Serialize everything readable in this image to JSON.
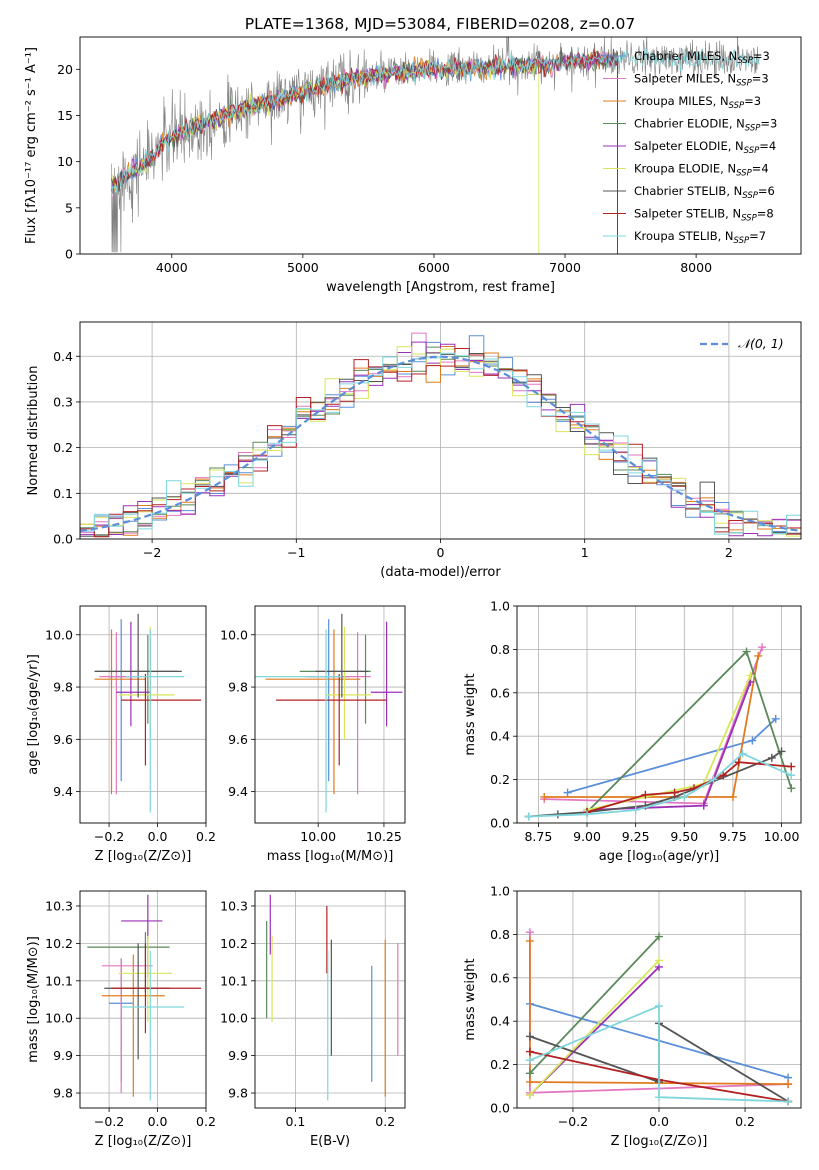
{
  "figure_title": "PLATE=1368, MJD=53084, FIBERID=0208, z=0.07",
  "colors": {
    "chabrier_miles": "#5b8fd9",
    "salpeter_miles": "#e377c2",
    "kroupa_miles": "#e07b1e",
    "chabrier_elodie": "#5a8a5a",
    "salpeter_elodie": "#9b30b8",
    "kroupa_elodie": "#d9e65a",
    "chabrier_stelib": "#555555",
    "salpeter_stelib": "#b22222",
    "kroupa_stelib": "#7fd6dc",
    "data": "#808080",
    "gaussian": "#5b8fd9",
    "grid": "#b0b0b0"
  },
  "chart_data": [
    {
      "id": "spectrum",
      "type": "line",
      "title": "PLATE=1368, MJD=53084, FIBERID=0208, z=0.07",
      "xlabel": "wavelength [Angstrom, rest frame]",
      "ylabel": "Flux [fλ10⁻¹⁷ erg cm⁻² s⁻¹ A⁻¹]",
      "xlim": [
        3300,
        8800
      ],
      "ylim": [
        0,
        23.5
      ],
      "xticks": [
        "4000",
        "5000",
        "6000",
        "7000",
        "8000"
      ],
      "xtick_values": [
        4000,
        5000,
        6000,
        7000,
        8000
      ],
      "yticks": [
        "0",
        "5",
        "10",
        "15",
        "20"
      ],
      "ytick_values": [
        0,
        5,
        10,
        15,
        20
      ],
      "grid": false,
      "legend_position": "right",
      "continuum_anchors": {
        "x": [
          3550,
          3650,
          3800,
          3950,
          4100,
          4300,
          4500,
          4800,
          5000,
          5200,
          5500,
          5800,
          6000,
          6200,
          6500,
          6800,
          7000,
          7200,
          7400
        ],
        "y": [
          7.5,
          8.5,
          9.8,
          12.2,
          13.3,
          14.5,
          15.5,
          16.8,
          17.5,
          18.4,
          19.3,
          19.8,
          20.0,
          20.1,
          20.3,
          20.5,
          20.8,
          21.0,
          21.1
        ]
      },
      "legend": [
        {
          "label": "Chabrier MILES, N",
          "sub": "SSP",
          "tail": "=3"
        },
        {
          "label": "Salpeter MILES, N",
          "sub": "SSP",
          "tail": "=3"
        },
        {
          "label": "Kroupa MILES, N",
          "sub": "SSP",
          "tail": "=3"
        },
        {
          "label": "Chabrier ELODIE, N",
          "sub": "SSP",
          "tail": "=3"
        },
        {
          "label": "Salpeter ELODIE, N",
          "sub": "SSP",
          "tail": "=4"
        },
        {
          "label": "Kroupa ELODIE, N",
          "sub": "SSP",
          "tail": "=4"
        },
        {
          "label": "Chabrier STELIB, N",
          "sub": "SSP",
          "tail": "=6"
        },
        {
          "label": "Salpeter STELIB, N",
          "sub": "SSP",
          "tail": "=8"
        },
        {
          "label": "Kroupa STELIB, N",
          "sub": "SSP",
          "tail": "=7"
        }
      ]
    },
    {
      "id": "residuals",
      "type": "line",
      "xlabel": "(data-model)/error",
      "ylabel": "Normed distribution",
      "xlim": [
        -2.5,
        2.5
      ],
      "ylim": [
        0,
        0.475
      ],
      "xticks": [
        "−2",
        "−1",
        "0",
        "1",
        "2"
      ],
      "xtick_values": [
        -2,
        -1,
        0,
        1,
        2
      ],
      "yticks": [
        "0.0",
        "0.1",
        "0.2",
        "0.3",
        "0.4"
      ],
      "ytick_values": [
        0,
        0.1,
        0.2,
        0.3,
        0.4
      ],
      "grid": true,
      "legend_position": "top-right",
      "legend_label": "𝒩(0, 1)",
      "bin_width": 0.1
    },
    {
      "id": "age_vs_Z",
      "type": "scatter",
      "xlabel": "Z [log₁₀(Z/Z⊙)]",
      "ylabel": "age  [log₁₀(age/yr)]",
      "xlim": [
        -0.32,
        0.2
      ],
      "ylim": [
        9.28,
        10.11
      ],
      "xticks": [
        "−0.2",
        "0.0",
        "0.2"
      ],
      "xtick_values": [
        -0.2,
        0.0,
        0.2
      ],
      "yticks": [
        "9.4",
        "9.6",
        "9.8",
        "10.0"
      ],
      "ytick_values": [
        9.4,
        9.6,
        9.8,
        10.0
      ],
      "grid": true,
      "points": [
        {
          "series": "Chabrier MILES",
          "x": -0.15,
          "xerr": [
            0.05,
            0.05
          ],
          "y": 9.84,
          "yerr": [
            0.4,
            0.22
          ]
        },
        {
          "series": "Salpeter MILES",
          "x": -0.17,
          "xerr": [
            0.07,
            0.1
          ],
          "y": 9.84,
          "yerr": [
            0.45,
            0.17
          ]
        },
        {
          "series": "Kroupa MILES",
          "x": -0.19,
          "xerr": [
            0.07,
            0.14
          ],
          "y": 9.83,
          "yerr": [
            0.44,
            0.19
          ]
        },
        {
          "series": "Chabrier ELODIE",
          "x": -0.04,
          "xerr": [
            0.22,
            0.12
          ],
          "y": 9.86,
          "yerr": [
            0.2,
            0.14
          ]
        },
        {
          "series": "Salpeter ELODIE",
          "x": -0.11,
          "xerr": [
            0.06,
            0.08
          ],
          "y": 9.78,
          "yerr": [
            0.13,
            0.27
          ]
        },
        {
          "series": "Kroupa ELODIE",
          "x": -0.03,
          "xerr": [
            0.13,
            0.1
          ],
          "y": 9.77,
          "yerr": [
            0.17,
            0.26
          ]
        },
        {
          "series": "Chabrier STELIB",
          "x": -0.08,
          "xerr": [
            0.18,
            0.18
          ],
          "y": 9.86,
          "yerr": [
            0.1,
            0.22
          ]
        },
        {
          "series": "Salpeter STELIB",
          "x": -0.05,
          "xerr": [
            0.1,
            0.23
          ],
          "y": 9.75,
          "yerr": [
            0.25,
            0.1
          ]
        },
        {
          "series": "Kroupa STELIB",
          "x": -0.03,
          "xerr": [
            0.1,
            0.14
          ],
          "y": 9.84,
          "yerr": [
            0.52,
            0.18
          ]
        }
      ]
    },
    {
      "id": "age_vs_mass",
      "type": "scatter",
      "xlabel": "mass [log₁₀(M/M⊙)]",
      "ylabel": "",
      "xlim": [
        9.76,
        10.33
      ],
      "ylim": [
        9.28,
        10.11
      ],
      "xticks": [
        "10.00",
        "10.25"
      ],
      "xtick_values": [
        10.0,
        10.25
      ],
      "yticks": [
        "9.4",
        "9.6",
        "9.8",
        "10.0"
      ],
      "ytick_values": [
        9.4,
        9.6,
        9.8,
        10.0
      ],
      "grid": true,
      "points": [
        {
          "series": "Chabrier MILES",
          "x": 10.04,
          "xerr": [
            0.07,
            0.08
          ],
          "y": 9.84,
          "yerr": [
            0.4,
            0.22
          ]
        },
        {
          "series": "Salpeter MILES",
          "x": 10.15,
          "xerr": [
            0.2,
            0.05
          ],
          "y": 9.84,
          "yerr": [
            0.45,
            0.17
          ]
        },
        {
          "series": "Kroupa MILES",
          "x": 10.06,
          "xerr": [
            0.26,
            0.1
          ],
          "y": 9.83,
          "yerr": [
            0.44,
            0.19
          ]
        },
        {
          "series": "Chabrier ELODIE",
          "x": 10.18,
          "xerr": [
            0.25,
            0.02
          ],
          "y": 9.86,
          "yerr": [
            0.2,
            0.14
          ]
        },
        {
          "series": "Salpeter ELODIE",
          "x": 10.26,
          "xerr": [
            0.06,
            0.06
          ],
          "y": 9.78,
          "yerr": [
            0.13,
            0.27
          ]
        },
        {
          "series": "Kroupa ELODIE",
          "x": 10.1,
          "xerr": [
            0.07,
            0.1
          ],
          "y": 9.77,
          "yerr": [
            0.17,
            0.26
          ]
        },
        {
          "series": "Chabrier STELIB",
          "x": 10.09,
          "xerr": [
            0.1,
            0.1
          ],
          "y": 9.86,
          "yerr": [
            0.1,
            0.22
          ]
        },
        {
          "series": "Salpeter STELIB",
          "x": 10.08,
          "xerr": [
            0.24,
            0.18
          ],
          "y": 9.75,
          "yerr": [
            0.25,
            0.1
          ]
        },
        {
          "series": "Kroupa STELIB",
          "x": 10.03,
          "xerr": [
            0.27,
            0.06
          ],
          "y": 9.84,
          "yerr": [
            0.52,
            0.18
          ]
        }
      ]
    },
    {
      "id": "weight_vs_age",
      "type": "line",
      "xlabel": "age  [log₁₀(age/yr)]",
      "ylabel": "mass weight",
      "xlim": [
        8.64,
        10.1
      ],
      "ylim": [
        0,
        1.0
      ],
      "xticks": [
        "8.75",
        "9.00",
        "9.25",
        "9.50",
        "9.75",
        "10.00"
      ],
      "xtick_values": [
        8.75,
        9.0,
        9.25,
        9.5,
        9.75,
        10.0
      ],
      "yticks": [
        "0.0",
        "0.2",
        "0.4",
        "0.6",
        "0.8",
        "1.0"
      ],
      "ytick_values": [
        0,
        0.2,
        0.4,
        0.6,
        0.8,
        1.0
      ],
      "grid": true,
      "series": [
        {
          "name": "Chabrier MILES",
          "x": [
            8.9,
            9.85,
            9.97
          ],
          "y": [
            0.14,
            0.38,
            0.48
          ]
        },
        {
          "name": "Salpeter MILES",
          "x": [
            8.78,
            9.6,
            9.9
          ],
          "y": [
            0.11,
            0.09,
            0.81
          ]
        },
        {
          "name": "Kroupa MILES",
          "x": [
            8.78,
            9.75,
            9.88
          ],
          "y": [
            0.12,
            0.12,
            0.77
          ]
        },
        {
          "name": "Chabrier ELODIE",
          "x": [
            9.0,
            9.82,
            10.05
          ],
          "y": [
            0.05,
            0.79,
            0.16
          ]
        },
        {
          "name": "Salpeter ELODIE",
          "x": [
            9.0,
            9.6,
            9.84
          ],
          "y": [
            0.06,
            0.08,
            0.65
          ]
        },
        {
          "name": "Kroupa ELODIE",
          "x": [
            9.0,
            9.6,
            9.84
          ],
          "y": [
            0.06,
            0.18,
            0.68
          ]
        },
        {
          "name": "Chabrier STELIB",
          "x": [
            8.7,
            8.85,
            9.0,
            9.3,
            9.45,
            9.95,
            10.0
          ],
          "y": [
            0.03,
            0.04,
            0.05,
            0.08,
            0.12,
            0.3,
            0.33
          ]
        },
        {
          "name": "Salpeter STELIB",
          "x": [
            9.0,
            9.3,
            9.45,
            9.55,
            9.65,
            9.7,
            9.78,
            10.05
          ],
          "y": [
            0.05,
            0.13,
            0.14,
            0.16,
            0.2,
            0.22,
            0.28,
            0.26
          ]
        },
        {
          "name": "Kroupa STELIB",
          "x": [
            8.7,
            9.0,
            9.25,
            9.5,
            9.65,
            9.8,
            10.05
          ],
          "y": [
            0.03,
            0.04,
            0.06,
            0.12,
            0.2,
            0.32,
            0.22
          ]
        }
      ]
    },
    {
      "id": "mass_vs_Z",
      "type": "scatter",
      "xlabel": "Z [log₁₀(Z/Z⊙)]",
      "ylabel": "mass [log₁₀(M/M⊙)]",
      "xlim": [
        -0.32,
        0.2
      ],
      "ylim": [
        9.76,
        10.34
      ],
      "xticks": [
        "−0.2",
        "0.0",
        "0.2"
      ],
      "xtick_values": [
        -0.2,
        0.0,
        0.2
      ],
      "yticks": [
        "9.8",
        "9.9",
        "10.0",
        "10.1",
        "10.2",
        "10.3"
      ],
      "ytick_values": [
        9.8,
        9.9,
        10.0,
        10.1,
        10.2,
        10.3
      ],
      "grid": true,
      "points": [
        {
          "series": "Chabrier MILES",
          "x": -0.15,
          "xerr": [
            0.05,
            0.05
          ],
          "y": 10.04,
          "yerr": [
            0.21,
            0.12
          ]
        },
        {
          "series": "Salpeter MILES",
          "x": -0.15,
          "xerr": [
            0.08,
            0.13
          ],
          "y": 10.14,
          "yerr": [
            0.34,
            0.02
          ]
        },
        {
          "series": "Kroupa MILES",
          "x": -0.1,
          "xerr": [
            0.13,
            0.13
          ],
          "y": 10.06,
          "yerr": [
            0.27,
            0.11
          ]
        },
        {
          "series": "Chabrier ELODIE",
          "x": -0.05,
          "xerr": [
            0.24,
            0.1
          ],
          "y": 10.19,
          "yerr": [
            0.12,
            0.04
          ]
        },
        {
          "series": "Salpeter ELODIE",
          "x": -0.04,
          "xerr": [
            0.11,
            0.06
          ],
          "y": 10.26,
          "yerr": [
            0.15,
            0.07
          ]
        },
        {
          "series": "Kroupa ELODIE",
          "x": -0.04,
          "xerr": [
            0.12,
            0.1
          ],
          "y": 10.12,
          "yerr": [
            0.13,
            0.1
          ]
        },
        {
          "series": "Chabrier STELIB",
          "x": -0.08,
          "xerr": [
            0.14,
            0.13
          ],
          "y": 10.08,
          "yerr": [
            0.19,
            0.12
          ]
        },
        {
          "series": "Salpeter STELIB",
          "x": -0.05,
          "xerr": [
            0.14,
            0.23
          ],
          "y": 10.08,
          "yerr": [
            0.12,
            0.12
          ]
        },
        {
          "series": "Kroupa STELIB",
          "x": -0.03,
          "xerr": [
            0.12,
            0.14
          ],
          "y": 10.03,
          "yerr": [
            0.25,
            0.15
          ]
        }
      ]
    },
    {
      "id": "mass_vs_ebv",
      "type": "scatter",
      "xlabel": "E(B-V)",
      "ylabel": "",
      "xlim": [
        0.055,
        0.222
      ],
      "ylim": [
        9.76,
        10.34
      ],
      "xticks": [
        "0.1",
        "0.2"
      ],
      "xtick_values": [
        0.1,
        0.2
      ],
      "yticks": [
        "9.8",
        "9.9",
        "10.0",
        "10.1",
        "10.2",
        "10.3"
      ],
      "ytick_values": [
        9.8,
        9.9,
        10.0,
        10.1,
        10.2,
        10.3
      ],
      "grid": true,
      "points": [
        {
          "series": "Chabrier MILES",
          "x": 0.185,
          "y": 10.04,
          "yerr": [
            0.21,
            0.1
          ]
        },
        {
          "series": "Salpeter MILES",
          "x": 0.214,
          "y": 10.1,
          "yerr": [
            0.2,
            0.1
          ]
        },
        {
          "series": "Kroupa MILES",
          "x": 0.2,
          "y": 10.05,
          "yerr": [
            0.26,
            0.16
          ]
        },
        {
          "series": "Chabrier ELODIE",
          "x": 0.068,
          "y": 10.16,
          "yerr": [
            0.16,
            0.1
          ]
        },
        {
          "series": "Salpeter ELODIE",
          "x": 0.072,
          "y": 10.27,
          "yerr": [
            0.1,
            0.06
          ]
        },
        {
          "series": "Kroupa ELODIE",
          "x": 0.074,
          "y": 10.12,
          "yerr": [
            0.13,
            0.1
          ]
        },
        {
          "series": "Chabrier STELIB",
          "x": 0.14,
          "y": 10.08,
          "yerr": [
            0.18,
            0.13
          ]
        },
        {
          "series": "Salpeter STELIB",
          "x": 0.135,
          "y": 10.22,
          "yerr": [
            0.1,
            0.08
          ]
        },
        {
          "series": "Kroupa STELIB",
          "x": 0.136,
          "y": 10.03,
          "yerr": [
            0.25,
            0.15
          ]
        }
      ]
    },
    {
      "id": "weight_vs_Z",
      "type": "line",
      "xlabel": "Z [log₁₀(Z/Z⊙)]",
      "ylabel": "mass weight",
      "xlim": [
        -0.33,
        0.33
      ],
      "ylim": [
        0,
        1.0
      ],
      "xticks": [
        "−0.2",
        "0.0",
        "0.2"
      ],
      "xtick_values": [
        -0.2,
        0.0,
        0.2
      ],
      "yticks": [
        "0.0",
        "0.2",
        "0.4",
        "0.6",
        "0.8",
        "1.0"
      ],
      "ytick_values": [
        0,
        0.2,
        0.4,
        0.6,
        0.8,
        1.0
      ],
      "grid": true,
      "series": [
        {
          "name": "Chabrier MILES",
          "x": [
            -0.3,
            0.3
          ],
          "y": [
            0.48,
            0.14
          ]
        },
        {
          "name": "Salpeter MILES",
          "x": [
            -0.3,
            -0.3,
            0.0,
            0.3
          ],
          "y": [
            0.81,
            0.07,
            0.09,
            0.11
          ]
        },
        {
          "name": "Kroupa MILES",
          "x": [
            -0.3,
            -0.3,
            0.3
          ],
          "y": [
            0.77,
            0.12,
            0.11
          ]
        },
        {
          "name": "Chabrier ELODIE",
          "x": [
            -0.3,
            0.0
          ],
          "y": [
            0.16,
            0.79
          ]
        },
        {
          "name": "Salpeter ELODIE",
          "x": [
            -0.3,
            0.0
          ],
          "y": [
            0.06,
            0.65
          ]
        },
        {
          "name": "Kroupa ELODIE",
          "x": [
            -0.3,
            0.0
          ],
          "y": [
            0.06,
            0.68
          ]
        },
        {
          "name": "Chabrier STELIB",
          "x": [
            -0.3,
            0.0,
            0.0,
            0.3
          ],
          "y": [
            0.33,
            0.12,
            0.39,
            0.03
          ]
        },
        {
          "name": "Salpeter STELIB",
          "x": [
            -0.3,
            0.0,
            0.3
          ],
          "y": [
            0.26,
            0.13,
            0.03
          ]
        },
        {
          "name": "Kroupa STELIB",
          "x": [
            -0.3,
            0.0,
            0.0,
            0.3
          ],
          "y": [
            0.22,
            0.47,
            0.05,
            0.03
          ]
        }
      ]
    }
  ]
}
